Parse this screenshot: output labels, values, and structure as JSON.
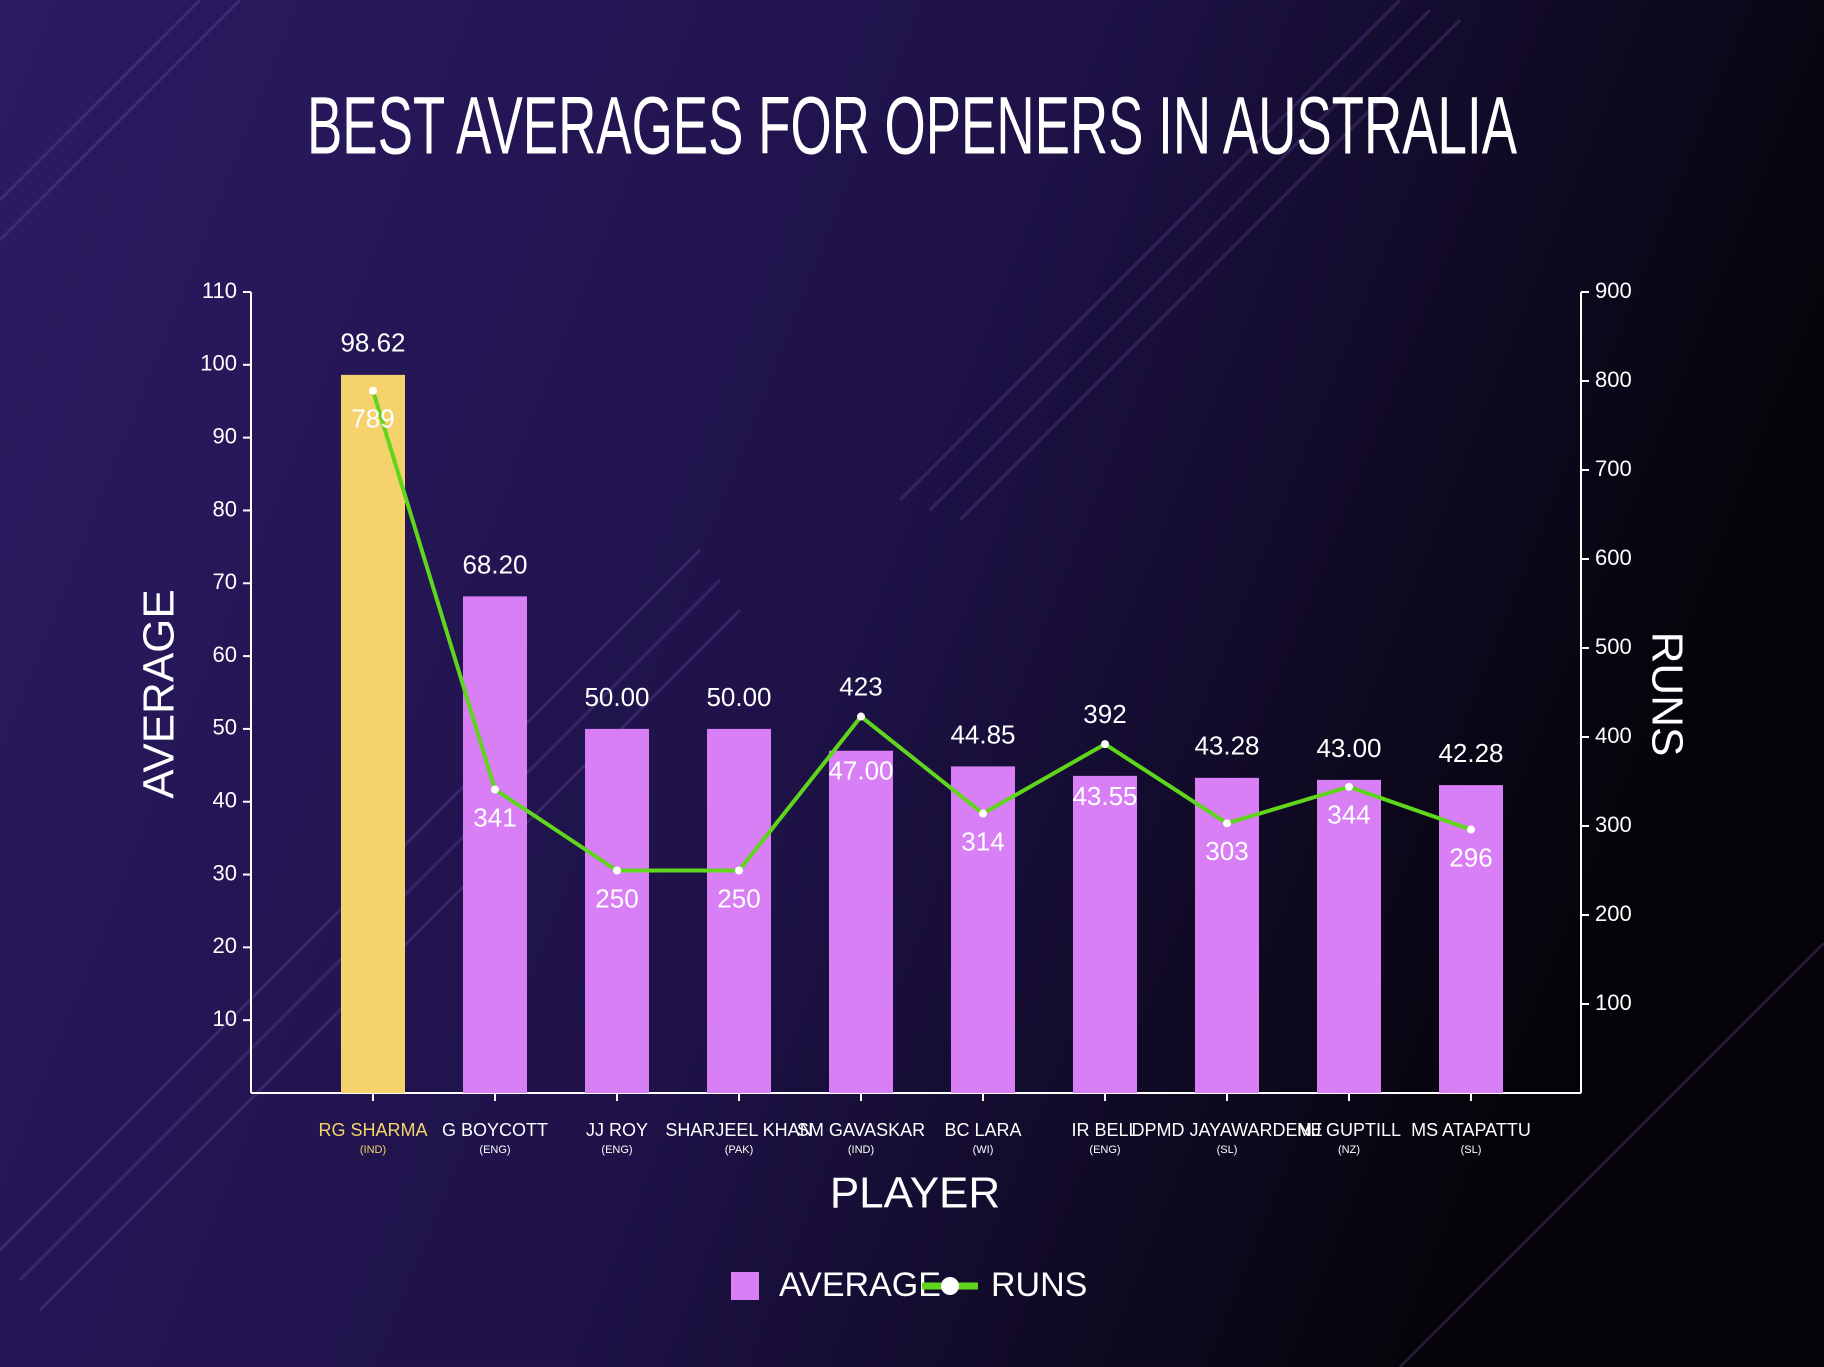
{
  "chart_data": {
    "type": "bar",
    "title": "BEST AVERAGES FOR OPENERS IN AUSTRALIA",
    "x_label": "PLAYER",
    "y_label": "AVERAGE",
    "y2_label": "RUNS",
    "categories": [
      "RG SHARMA",
      "G BOYCOTT",
      "JJ ROY",
      "SHARJEEL KHAN",
      "SM GAVASKAR",
      "BC LARA",
      "IR BELL",
      "DPMD JAYAWARDENE",
      "MJ GUPTILL",
      "MS ATAPATTU"
    ],
    "countries": [
      "(IND)",
      "(ENG)",
      "(ENG)",
      "(PAK)",
      "(IND)",
      "(WI)",
      "(ENG)",
      "(SL)",
      "(NZ)",
      "(SL)"
    ],
    "series": [
      {
        "name": "AVERAGE",
        "type": "bar",
        "color": "#d97ff5",
        "colors": [
          "#f5d26b",
          "#d97ff5",
          "#d97ff5",
          "#d97ff5",
          "#d97ff5",
          "#d97ff5",
          "#d97ff5",
          "#d97ff5",
          "#d97ff5",
          "#d97ff5"
        ],
        "values": [
          98.62,
          68.2,
          50,
          50,
          47,
          44.85,
          43.55,
          43.28,
          43,
          42.28
        ],
        "value_labels": [
          "98.62",
          "68.20",
          "50.00",
          "50.00",
          "47.00",
          "44.85",
          "43.55",
          "43.28",
          "43.00",
          "42.28"
        ]
      },
      {
        "name": "RUNS",
        "type": "line",
        "axis": "y2",
        "color": "#5fd61c",
        "values": [
          789,
          341,
          250,
          250,
          423,
          314,
          392,
          303,
          344,
          296
        ]
      }
    ],
    "ylim": [
      0,
      110
    ],
    "yticks": [
      10,
      20,
      30,
      40,
      50,
      60,
      70,
      80,
      90,
      100,
      110
    ],
    "y2lim": [
      0,
      900
    ],
    "y2ticks": [
      100,
      200,
      300,
      400,
      500,
      600,
      700,
      800,
      900
    ]
  }
}
